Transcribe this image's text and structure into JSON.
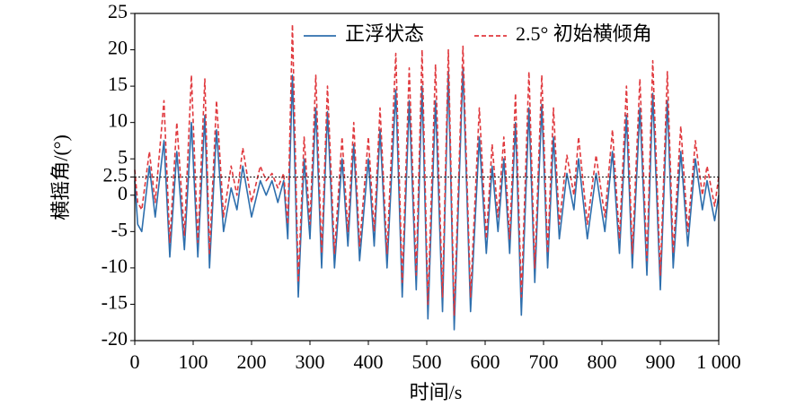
{
  "chart_data": {
    "type": "line",
    "xlabel": "时间/s",
    "ylabel": "横摇角/(°)",
    "x": [
      0,
      5,
      12,
      25,
      35,
      50,
      60,
      72,
      85,
      97,
      108,
      120,
      128,
      140,
      152,
      165,
      175,
      185,
      200,
      215,
      225,
      235,
      245,
      255,
      262,
      270,
      280,
      290,
      300,
      310,
      320,
      330,
      342,
      355,
      365,
      375,
      385,
      400,
      410,
      420,
      432,
      447,
      458,
      470,
      482,
      492,
      502,
      515,
      527,
      537,
      547,
      562,
      575,
      590,
      602,
      612,
      622,
      632,
      642,
      652,
      662,
      675,
      685,
      697,
      707,
      717,
      727,
      740,
      752,
      760,
      775,
      790,
      805,
      818,
      830,
      842,
      852,
      865,
      877,
      887,
      900,
      912,
      922,
      935,
      947,
      960,
      972,
      980,
      993,
      1000
    ],
    "series": [
      {
        "name": "正浮状态",
        "color": "#2e6fad",
        "dash": false,
        "values": [
          2,
          -4,
          -5,
          4,
          -3,
          7.5,
          -8.5,
          6,
          -7.5,
          10,
          -8.5,
          11,
          -10,
          9,
          -5,
          1,
          -2,
          4,
          -3,
          2,
          0,
          2,
          -1,
          2,
          -6,
          16.5,
          -14,
          5,
          -6,
          12,
          -10,
          11.5,
          -10,
          5,
          -7,
          7,
          -9,
          5,
          -7,
          9,
          -10,
          14.5,
          -14,
          13,
          -13,
          15,
          -17,
          13,
          -16,
          17,
          -18.5,
          17.5,
          -16,
          8,
          -8,
          4,
          -5,
          5,
          -8,
          10,
          -16.5,
          12,
          -12,
          12.5,
          -10,
          8,
          -6,
          3,
          -2,
          5,
          -6,
          3,
          -5,
          6,
          -8,
          11,
          -10,
          12,
          -11,
          14,
          -13,
          13,
          -10,
          6,
          -7,
          5,
          -2,
          2,
          -3.5,
          0
        ]
      },
      {
        "name": "2.5° 初始横倾角",
        "color": "#e0393e",
        "dash": true,
        "values": [
          3.5,
          -1,
          -2,
          6,
          -1,
          13,
          -6.5,
          10,
          -5.5,
          16.5,
          -6.5,
          16,
          -8,
          13,
          -3,
          4,
          0,
          6.5,
          -1,
          4,
          2,
          3,
          1,
          3,
          -4,
          23.5,
          -12,
          8,
          -4,
          16.5,
          -8,
          15,
          -8,
          8,
          -5,
          10,
          -7,
          8,
          -5,
          12,
          -8,
          19.5,
          -12,
          17.5,
          -11,
          20,
          -15,
          18,
          -14,
          20,
          -16.5,
          20.5,
          -14,
          12,
          -6,
          7,
          -3,
          8,
          -6,
          14,
          -14,
          17,
          -10,
          16.5,
          -8,
          12,
          -4,
          5.5,
          0,
          8,
          -4,
          5.5,
          -3,
          9,
          -6,
          15,
          -8,
          16,
          -9,
          18.5,
          -11,
          17,
          -8,
          9.5,
          -5,
          7.5,
          0,
          4,
          -1.5,
          2.5
        ]
      }
    ],
    "hline": 2.5,
    "xlim": [
      0,
      1000
    ],
    "xticks": [
      0,
      100,
      200,
      300,
      400,
      500,
      600,
      700,
      800,
      900,
      {
        "value": 1000,
        "label": "1 000"
      }
    ],
    "ylim": [
      -20,
      25
    ],
    "yticks": [
      -20,
      -15,
      -10,
      -5,
      0,
      2.5,
      5,
      10,
      15,
      20,
      25
    ],
    "legend": "upper right"
  }
}
